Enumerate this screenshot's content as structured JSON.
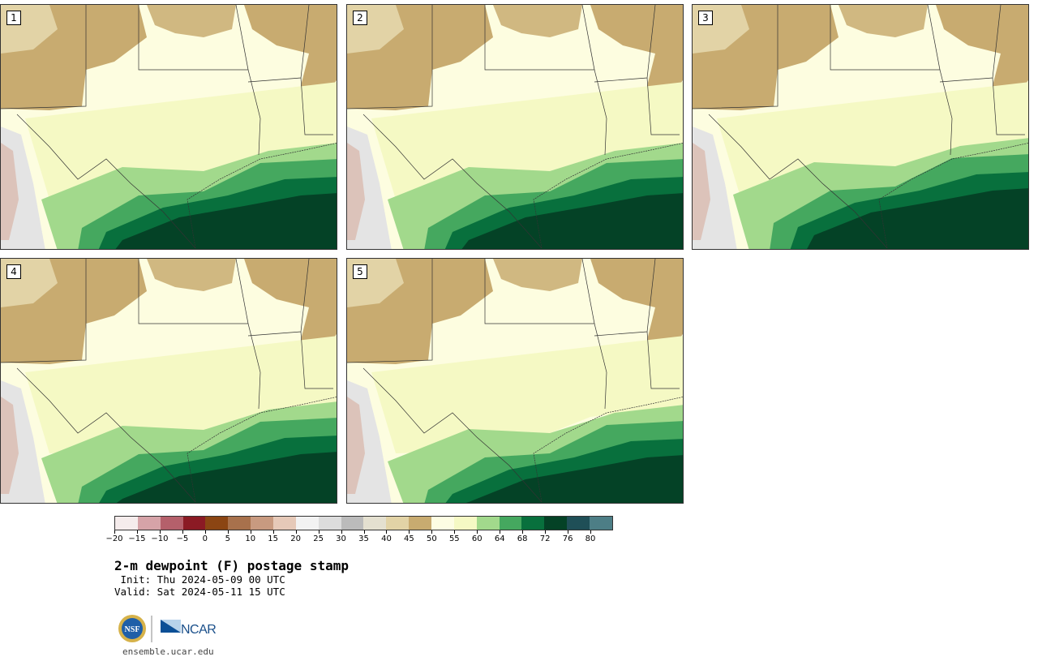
{
  "panels": [
    {
      "label": "1"
    },
    {
      "label": "2"
    },
    {
      "label": "3"
    },
    {
      "label": "4"
    },
    {
      "label": "5"
    }
  ],
  "colorbar": {
    "colors": [
      "#f5ecec",
      "#d6a3a8",
      "#b5606b",
      "#8b1a24",
      "#8b4513",
      "#a8714c",
      "#c89a80",
      "#e6c9b8",
      "#f2f2f2",
      "#dcdcdc",
      "#bbbbbb",
      "#e4e0d0",
      "#e2d3a6",
      "#c8ab70",
      "#fdfde3",
      "#f5f9c4",
      "#a2d98c",
      "#45a85f",
      "#08703d",
      "#044226",
      "#1f4f57",
      "#4d7e86"
    ],
    "ticks": [
      "−20",
      "−15",
      "−10",
      "−5",
      "0",
      "5",
      "10",
      "15",
      "20",
      "25",
      "30",
      "35",
      "40",
      "45",
      "50",
      "55",
      "60",
      "64",
      "68",
      "72",
      "76",
      "80"
    ]
  },
  "title": "2-m dewpoint (F) postage stamp",
  "init": " Init: Thu 2024-05-09 00 UTC",
  "valid": "Valid: Sat 2024-05-11 15 UTC",
  "logos": {
    "nsf": "NSF",
    "ncar": "NCAR"
  },
  "url": "ensemble.ucar.edu",
  "map_colors": {
    "base": "#fdfde0",
    "dry_tan": "#c8ab70",
    "light_tan": "#e2d3a6",
    "yellow": "#f5f9c4",
    "light_green": "#a2d98c",
    "green": "#45a85f",
    "dark_green": "#08703d",
    "darkest_green": "#044226",
    "terrain_gray": "#e4e4e4",
    "terrain_pink": "#d9b5a8"
  }
}
